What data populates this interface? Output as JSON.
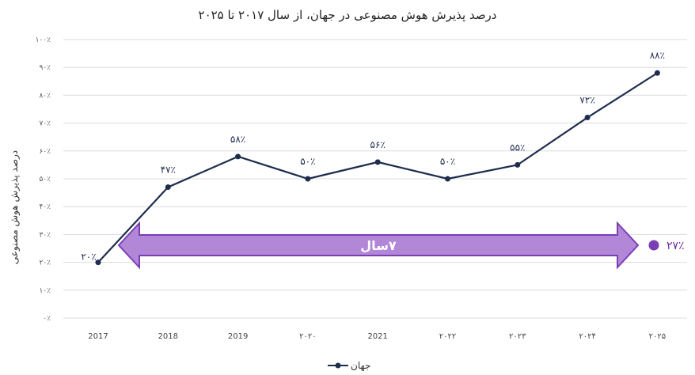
{
  "chart_data": {
    "type": "line",
    "title": "درصد پذیرش هوش مصنوعی در جهان، از سال ۲۰۱۷ تا ۲۰۲۵",
    "ylabel": "درصد پذیرش هوش مصنوعی",
    "xlabel": "",
    "ylim": [
      0,
      100
    ],
    "y_ticks": [
      0,
      10,
      20,
      30,
      40,
      50,
      60,
      70,
      80,
      90,
      100
    ],
    "y_tick_labels": [
      "۰٪",
      "۱۰٪",
      "۲۰٪",
      "۳۰٪",
      "۴۰٪",
      "۵۰٪",
      "۶۰٪",
      "۷۰٪",
      "۸۰٪",
      "۹۰٪",
      "۱۰۰٪"
    ],
    "categories": [
      "2017",
      "2018",
      "2019",
      "2020",
      "2021",
      "2022",
      "2023",
      "2024",
      "2025"
    ],
    "category_labels": [
      "2017",
      "2018",
      "2019",
      "۲۰۲۰",
      "2021",
      "۲۰۲۲",
      "۲۰۲۳",
      "۲۰۲۴",
      "۲۰۲۵"
    ],
    "series": [
      {
        "name": "جهان",
        "color": "#1f2d4d",
        "values": [
          20,
          47,
          58,
          50,
          56,
          50,
          55,
          72,
          88
        ],
        "data_labels": [
          "۲۰٪",
          "۴۷٪",
          "۵۸٪",
          "۵۰٪",
          "۵۶٪",
          "۵۰٪",
          "۵۵٪",
          "۷۲٪",
          "۸۸٪"
        ]
      }
    ],
    "grid": true,
    "legend": "bottom",
    "annotation": {
      "arrow_label": "۷سال",
      "arrow_color": "#b287d8",
      "arrow_stroke": "#7b3fb5",
      "growth_label": "۲۷٪",
      "growth_color": "#7b3fb5"
    }
  }
}
